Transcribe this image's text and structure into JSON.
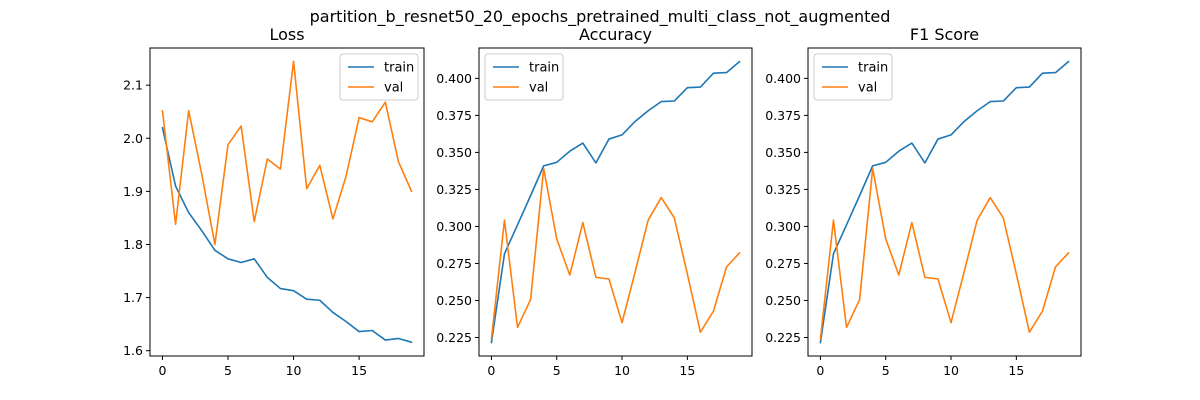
{
  "figure": {
    "suptitle": "partition_b_resnet50_20_epochs_pretrained_multi_class_not_augmented"
  },
  "colors": {
    "train": "#1f77b4",
    "val": "#ff7f0e"
  },
  "chart_data": [
    {
      "type": "line",
      "title": "Loss",
      "xlabel": "",
      "ylabel": "",
      "x": [
        0,
        1,
        2,
        3,
        4,
        5,
        6,
        7,
        8,
        9,
        10,
        11,
        12,
        13,
        14,
        15,
        16,
        17,
        18,
        19
      ],
      "xlim": [
        -0.95,
        19.95
      ],
      "ylim": [
        1.59,
        2.17
      ],
      "xticks": [
        0,
        5,
        10,
        15
      ],
      "yticks": [
        1.6,
        1.7,
        1.8,
        1.9,
        2.0,
        2.1
      ],
      "ytick_format": 1,
      "legend": "upper right",
      "series": [
        {
          "name": "train",
          "values": [
            2.02,
            1.91,
            1.86,
            1.826,
            1.789,
            1.773,
            1.766,
            1.773,
            1.738,
            1.717,
            1.713,
            1.697,
            1.695,
            1.672,
            1.655,
            1.636,
            1.638,
            1.62,
            1.623,
            1.616
          ]
        },
        {
          "name": "val",
          "values": [
            2.052,
            1.838,
            2.052,
            1.932,
            1.8,
            1.988,
            2.023,
            1.843,
            1.961,
            1.942,
            2.145,
            1.905,
            1.949,
            1.848,
            1.928,
            2.039,
            2.031,
            2.068,
            1.956,
            1.9
          ]
        }
      ]
    },
    {
      "type": "line",
      "title": "Accuracy",
      "xlabel": "",
      "ylabel": "",
      "x": [
        0,
        1,
        2,
        3,
        4,
        5,
        6,
        7,
        8,
        9,
        10,
        11,
        12,
        13,
        14,
        15,
        16,
        17,
        18,
        19
      ],
      "xlim": [
        -0.95,
        19.95
      ],
      "ylim": [
        0.2125,
        0.4205
      ],
      "xticks": [
        0,
        5,
        10,
        15
      ],
      "yticks": [
        0.225,
        0.25,
        0.275,
        0.3,
        0.325,
        0.35,
        0.375,
        0.4
      ],
      "ytick_format": 3,
      "legend": "upper left",
      "series": [
        {
          "name": "train",
          "values": [
            0.2215,
            0.2815,
            0.3011,
            0.3208,
            0.3409,
            0.3433,
            0.3508,
            0.3563,
            0.3429,
            0.359,
            0.3618,
            0.3709,
            0.3781,
            0.3843,
            0.3847,
            0.3937,
            0.3941,
            0.4035,
            0.4039,
            0.4114
          ]
        },
        {
          "name": "val",
          "values": [
            0.224,
            0.3042,
            0.2318,
            0.2506,
            0.3391,
            0.2916,
            0.2672,
            0.3026,
            0.2656,
            0.2645,
            0.235,
            0.2692,
            0.3042,
            0.3195,
            0.3058,
            0.268,
            0.2286,
            0.2428,
            0.2727,
            0.2822
          ]
        }
      ]
    },
    {
      "type": "line",
      "title": "F1 Score",
      "xlabel": "",
      "ylabel": "",
      "x": [
        0,
        1,
        2,
        3,
        4,
        5,
        6,
        7,
        8,
        9,
        10,
        11,
        12,
        13,
        14,
        15,
        16,
        17,
        18,
        19
      ],
      "xlim": [
        -0.95,
        19.95
      ],
      "ylim": [
        0.2125,
        0.4205
      ],
      "xticks": [
        0,
        5,
        10,
        15
      ],
      "yticks": [
        0.225,
        0.25,
        0.275,
        0.3,
        0.325,
        0.35,
        0.375,
        0.4
      ],
      "ytick_format": 3,
      "legend": "upper left",
      "series": [
        {
          "name": "train",
          "values": [
            0.2215,
            0.2815,
            0.3011,
            0.3208,
            0.3409,
            0.3433,
            0.3508,
            0.3563,
            0.3429,
            0.359,
            0.3618,
            0.3709,
            0.3781,
            0.3843,
            0.3847,
            0.3937,
            0.3941,
            0.4035,
            0.4039,
            0.4114
          ]
        },
        {
          "name": "val",
          "values": [
            0.224,
            0.3042,
            0.2318,
            0.2506,
            0.3391,
            0.2916,
            0.2672,
            0.3026,
            0.2656,
            0.2645,
            0.235,
            0.2692,
            0.3042,
            0.3195,
            0.3058,
            0.268,
            0.2286,
            0.2428,
            0.2727,
            0.2822
          ]
        }
      ]
    }
  ]
}
